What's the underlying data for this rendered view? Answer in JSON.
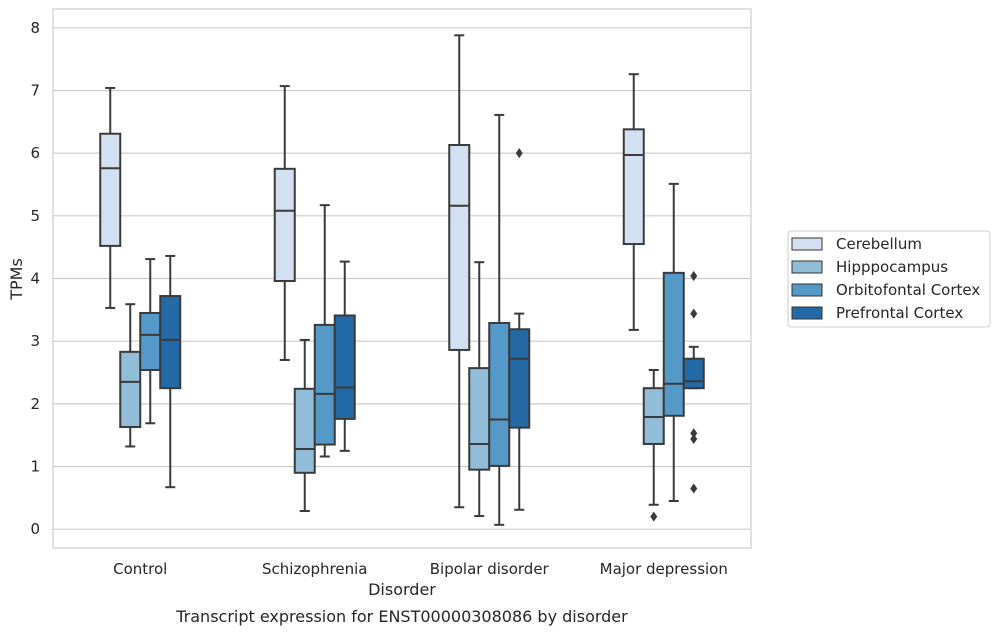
{
  "chart_data": {
    "type": "box",
    "xlabel": "Disorder",
    "ylabel": "TPMs",
    "caption": "Transcript expression for ENST00000308086 by disorder",
    "ylim": [
      -0.3,
      8.3
    ],
    "yticks": [
      0,
      1,
      2,
      3,
      4,
      5,
      6,
      7,
      8
    ],
    "grid": true,
    "legend_position": "right",
    "categories": [
      "Control",
      "Schizophrenia",
      "Bipolar disorder",
      "Major depression"
    ],
    "series": [
      {
        "name": "Cerebellum",
        "color": "#d2e0f1",
        "boxes": [
          {
            "whislo": 3.53,
            "q1": 4.52,
            "med": 5.76,
            "q3": 6.31,
            "whishi": 7.04,
            "fliers": []
          },
          {
            "whislo": 2.7,
            "q1": 3.96,
            "med": 5.08,
            "q3": 5.75,
            "whishi": 7.07,
            "fliers": []
          },
          {
            "whislo": 0.35,
            "q1": 2.86,
            "med": 5.16,
            "q3": 6.13,
            "whishi": 7.88,
            "fliers": []
          },
          {
            "whislo": 3.18,
            "q1": 4.55,
            "med": 5.97,
            "q3": 6.38,
            "whishi": 7.26,
            "fliers": []
          }
        ]
      },
      {
        "name": "Hipppocampus",
        "color": "#91bdd9",
        "boxes": [
          {
            "whislo": 1.32,
            "q1": 1.63,
            "med": 2.35,
            "q3": 2.83,
            "whishi": 3.59,
            "fliers": []
          },
          {
            "whislo": 0.29,
            "q1": 0.9,
            "med": 1.28,
            "q3": 2.24,
            "whishi": 3.02,
            "fliers": []
          },
          {
            "whislo": 0.21,
            "q1": 0.95,
            "med": 1.36,
            "q3": 2.57,
            "whishi": 4.26,
            "fliers": []
          },
          {
            "whislo": 0.39,
            "q1": 1.36,
            "med": 1.79,
            "q3": 2.25,
            "whishi": 2.54,
            "fliers": [
              0.2
            ]
          }
        ]
      },
      {
        "name": "Orbitofontal Cortex",
        "color": "#5499c7",
        "boxes": [
          {
            "whislo": 1.69,
            "q1": 2.54,
            "med": 3.1,
            "q3": 3.45,
            "whishi": 4.31,
            "fliers": []
          },
          {
            "whislo": 1.16,
            "q1": 1.35,
            "med": 2.16,
            "q3": 3.26,
            "whishi": 5.17,
            "fliers": []
          },
          {
            "whislo": 0.07,
            "q1": 1.01,
            "med": 1.75,
            "q3": 3.29,
            "whishi": 6.61,
            "fliers": []
          },
          {
            "whislo": 0.45,
            "q1": 1.81,
            "med": 2.32,
            "q3": 4.09,
            "whishi": 5.51,
            "fliers": []
          }
        ]
      },
      {
        "name": "Prefrontal Cortex",
        "color": "#2369a6",
        "boxes": [
          {
            "whislo": 0.67,
            "q1": 2.25,
            "med": 3.02,
            "q3": 3.72,
            "whishi": 4.36,
            "fliers": []
          },
          {
            "whislo": 1.25,
            "q1": 1.76,
            "med": 2.26,
            "q3": 3.41,
            "whishi": 4.27,
            "fliers": []
          },
          {
            "whislo": 0.31,
            "q1": 1.62,
            "med": 2.72,
            "q3": 3.19,
            "whishi": 3.44,
            "fliers": [
              6.0
            ]
          },
          {
            "whislo": 2.25,
            "q1": 2.25,
            "med": 2.36,
            "q3": 2.72,
            "whishi": 2.91,
            "fliers": [
              0.65,
              1.44,
              1.53,
              3.44,
              4.04
            ]
          }
        ]
      }
    ]
  }
}
